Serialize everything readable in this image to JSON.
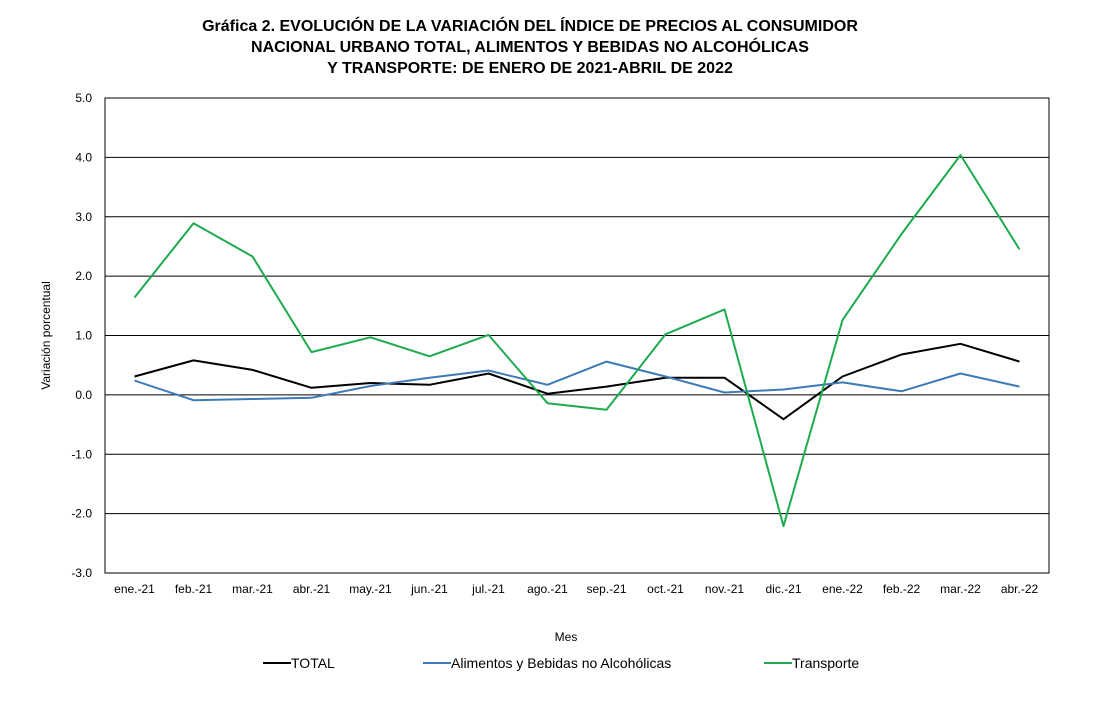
{
  "chart_data": {
    "type": "line",
    "title": [
      "Gráfica 2. EVOLUCIÓN DE LA VARIACIÓN DEL ÍNDICE DE PRECIOS AL CONSUMIDOR",
      "NACIONAL URBANO TOTAL, ALIMENTOS Y BEBIDAS NO ALCOHÓLICAS",
      "Y TRANSPORTE: DE ENERO DE 2021-ABRIL DE 2022"
    ],
    "xlabel": "Mes",
    "ylabel": "Variación porcentual",
    "ylim": [
      -3.0,
      5.0
    ],
    "yticks": [
      "5.0",
      "4.0",
      "3.0",
      "2.0",
      "1.0",
      "0.0",
      "-1.0",
      "-2.0",
      "-3.0"
    ],
    "grid": true,
    "legend_position": "bottom",
    "categories": [
      "ene.-21",
      "feb.-21",
      "mar.-21",
      "abr.-21",
      "may.-21",
      "jun.-21",
      "jul.-21",
      "ago.-21",
      "sep.-21",
      "oct.-21",
      "nov.-21",
      "dic.-21",
      "ene.-22",
      "feb.-22",
      "mar.-22",
      "abr.-22"
    ],
    "series": [
      {
        "name": "TOTAL",
        "color": "#000000",
        "values": [
          0.31,
          0.58,
          0.42,
          0.12,
          0.2,
          0.17,
          0.36,
          0.02,
          0.14,
          0.29,
          0.29,
          -0.41,
          0.31,
          0.68,
          0.86,
          0.56
        ]
      },
      {
        "name": "Alimentos y Bebidas no Alcohólicas",
        "color": "#3c7bb5",
        "values": [
          0.24,
          -0.09,
          -0.07,
          -0.05,
          0.15,
          0.29,
          0.41,
          0.17,
          0.56,
          0.31,
          0.04,
          0.09,
          0.21,
          0.06,
          0.36,
          0.14
        ]
      },
      {
        "name": "Transporte",
        "color": "#1eaa4e",
        "values": [
          1.64,
          2.89,
          2.33,
          0.72,
          0.97,
          0.65,
          1.01,
          -0.14,
          -0.25,
          1.02,
          1.44,
          -2.21,
          1.26,
          2.71,
          4.04,
          2.45
        ]
      }
    ]
  }
}
